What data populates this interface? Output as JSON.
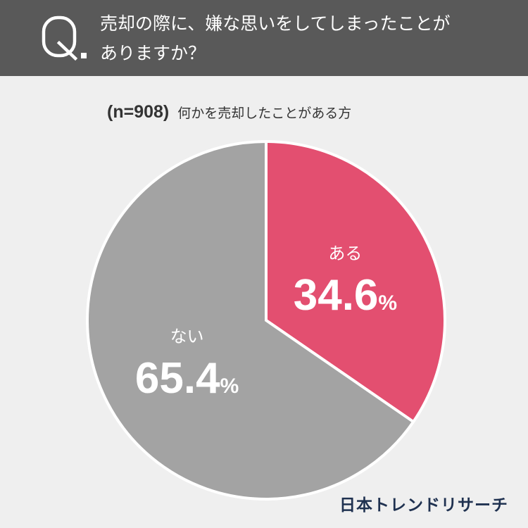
{
  "header": {
    "icon": "q-letter-icon",
    "question_line1": "売却の際に、嫌な思いをしてしまったことが",
    "question_line2": "ありますか？"
  },
  "subtitle": {
    "sample": "(n=908)",
    "audience": "何かを売却したことがある方"
  },
  "chart_data": {
    "type": "pie",
    "categories": [
      "ある",
      "ない"
    ],
    "values": [
      34.6,
      65.4
    ],
    "value_labels": [
      "34.6%",
      "65.4%"
    ],
    "colors": [
      "#e34f70",
      "#a3a3a3"
    ],
    "start": "12 o'clock",
    "direction": "clockwise"
  },
  "footer": {
    "logo_text": "日本トレンドリサーチ"
  }
}
